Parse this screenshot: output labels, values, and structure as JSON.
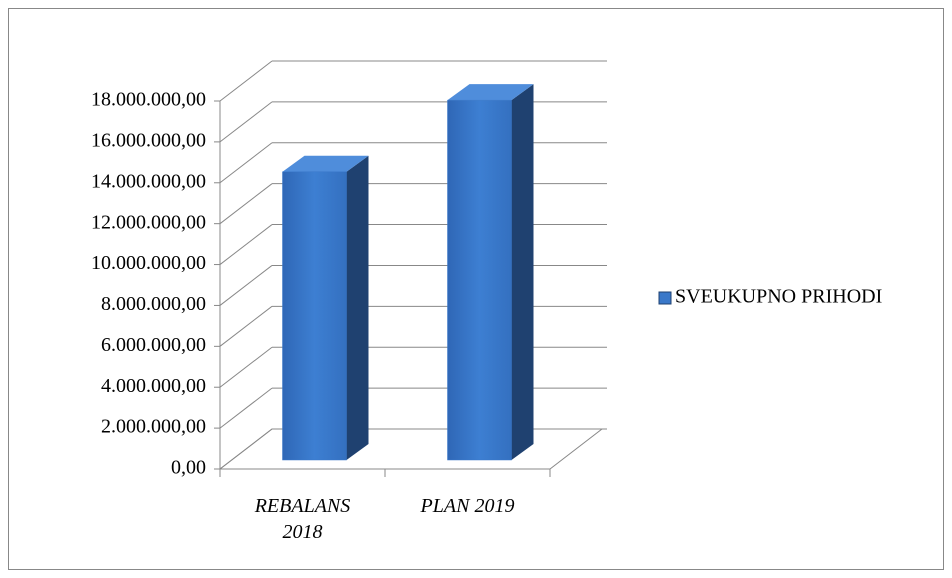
{
  "chart_data": {
    "type": "bar3d",
    "categories": [
      "REBALANS 2018",
      "PLAN 2019"
    ],
    "series": [
      {
        "name": "SVEUKUPNO PRIHODI",
        "color": "#3a78c9",
        "values": [
          14100000,
          17600000
        ]
      }
    ],
    "ylim": [
      0,
      18000000
    ],
    "yticks": [
      {
        "value": 0,
        "label": "0,00"
      },
      {
        "value": 2000000,
        "label": "2.000.000,00"
      },
      {
        "value": 4000000,
        "label": "4.000.000,00"
      },
      {
        "value": 6000000,
        "label": "6.000.000,00"
      },
      {
        "value": 8000000,
        "label": "8.000.000,00"
      },
      {
        "value": 10000000,
        "label": "10.000.000,00"
      },
      {
        "value": 12000000,
        "label": "12.000.000,00"
      },
      {
        "value": 14000000,
        "label": "14.000.000,00"
      },
      {
        "value": 16000000,
        "label": "16.000.000,00"
      },
      {
        "value": 18000000,
        "label": "18.000.000,00"
      }
    ],
    "grid": true,
    "legend": "right"
  }
}
